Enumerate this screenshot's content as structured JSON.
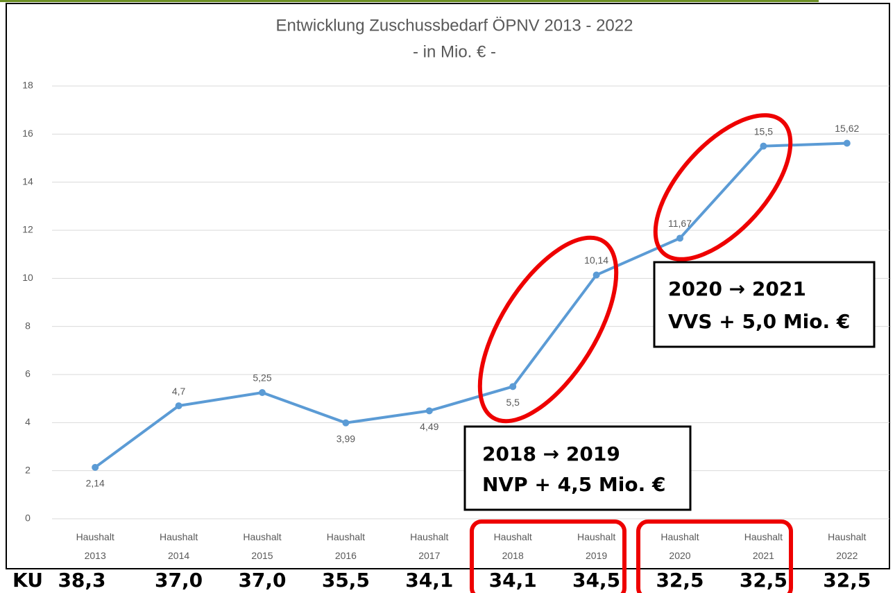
{
  "chart_data": {
    "type": "line",
    "title": "Entwicklung Zuschussbedarf ÖPNV 2013 - 2022",
    "subtitle": "- in Mio. € -",
    "categories": [
      "Haushalt 2013",
      "Haushalt 2014",
      "Haushalt 2015",
      "Haushalt 2016",
      "Haushalt 2017",
      "Haushalt 2018",
      "Haushalt 2019",
      "Haushalt 2020",
      "Haushalt 2021",
      "Haushalt 2022"
    ],
    "series": [
      {
        "name": "Zuschussbedarf",
        "color": "#5b9bd5",
        "values": [
          2.14,
          4.7,
          5.25,
          3.99,
          4.49,
          5.5,
          10.14,
          11.67,
          15.5,
          15.62
        ],
        "value_labels": [
          "2,14",
          "4,7",
          "5,25",
          "3,99",
          "4,49",
          "5,5",
          "10,14",
          "11,67",
          "15,5",
          "15,62"
        ]
      }
    ],
    "ylim": [
      0,
      18
    ],
    "yticks": [
      0,
      2,
      4,
      6,
      8,
      10,
      12,
      14,
      16,
      18
    ],
    "grid": true,
    "annotations": [
      {
        "lines": [
          "2018 → 2019",
          "NVP + 4,5 Mio. €"
        ]
      },
      {
        "lines": [
          "2020 → 2021",
          "VVS + 5,0 Mio. €"
        ]
      }
    ],
    "ku_row": {
      "label": "KU",
      "values": [
        "38,3",
        "37,0",
        "37,0",
        "35,5",
        "34,1",
        "34,1",
        "34,5",
        "32,5",
        "32,5",
        "32,5"
      ]
    }
  }
}
